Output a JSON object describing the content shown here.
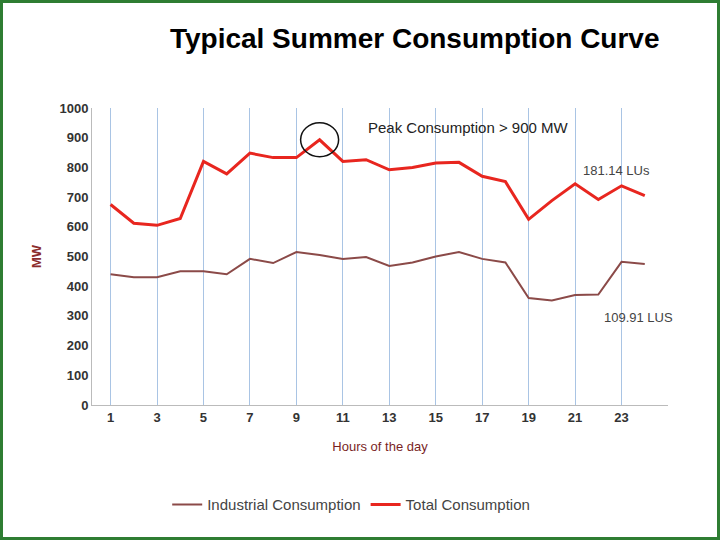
{
  "chart_data": {
    "type": "line",
    "title": "Typical Summer Consumption Curve",
    "x_label": "Hours of the day",
    "y_label": "MW",
    "x": [
      1,
      2,
      3,
      4,
      5,
      6,
      7,
      8,
      9,
      10,
      11,
      12,
      13,
      14,
      15,
      16,
      17,
      18,
      19,
      20,
      21,
      22,
      23,
      24
    ],
    "xlim": [
      0.2,
      25
    ],
    "xticks": [
      1,
      3,
      5,
      7,
      9,
      11,
      13,
      15,
      17,
      19,
      21,
      23
    ],
    "ylim": [
      0,
      1000
    ],
    "yticks": [
      0,
      100,
      200,
      300,
      400,
      500,
      600,
      700,
      800,
      900,
      1000
    ],
    "grid": true,
    "legend": "bottom",
    "series": [
      {
        "name": "Industrial Consumption",
        "color": "#8b4a48",
        "values": [
          440,
          430,
          430,
          450,
          450,
          440,
          492,
          478,
          515,
          505,
          492,
          498,
          468,
          480,
          500,
          515,
          492,
          480,
          360,
          352,
          370,
          372,
          482,
          475
        ]
      },
      {
        "name": "Total Consumption",
        "color": "#e8261f",
        "values": [
          675,
          612,
          605,
          628,
          820,
          778,
          848,
          833,
          833,
          893,
          820,
          826,
          792,
          800,
          815,
          817,
          770,
          752,
          625,
          688,
          745,
          692,
          738,
          705
        ]
      }
    ],
    "annotations": [
      "Peak Consumption > 900 MW",
      "181.14 LUs",
      "109.91 LUS"
    ]
  }
}
